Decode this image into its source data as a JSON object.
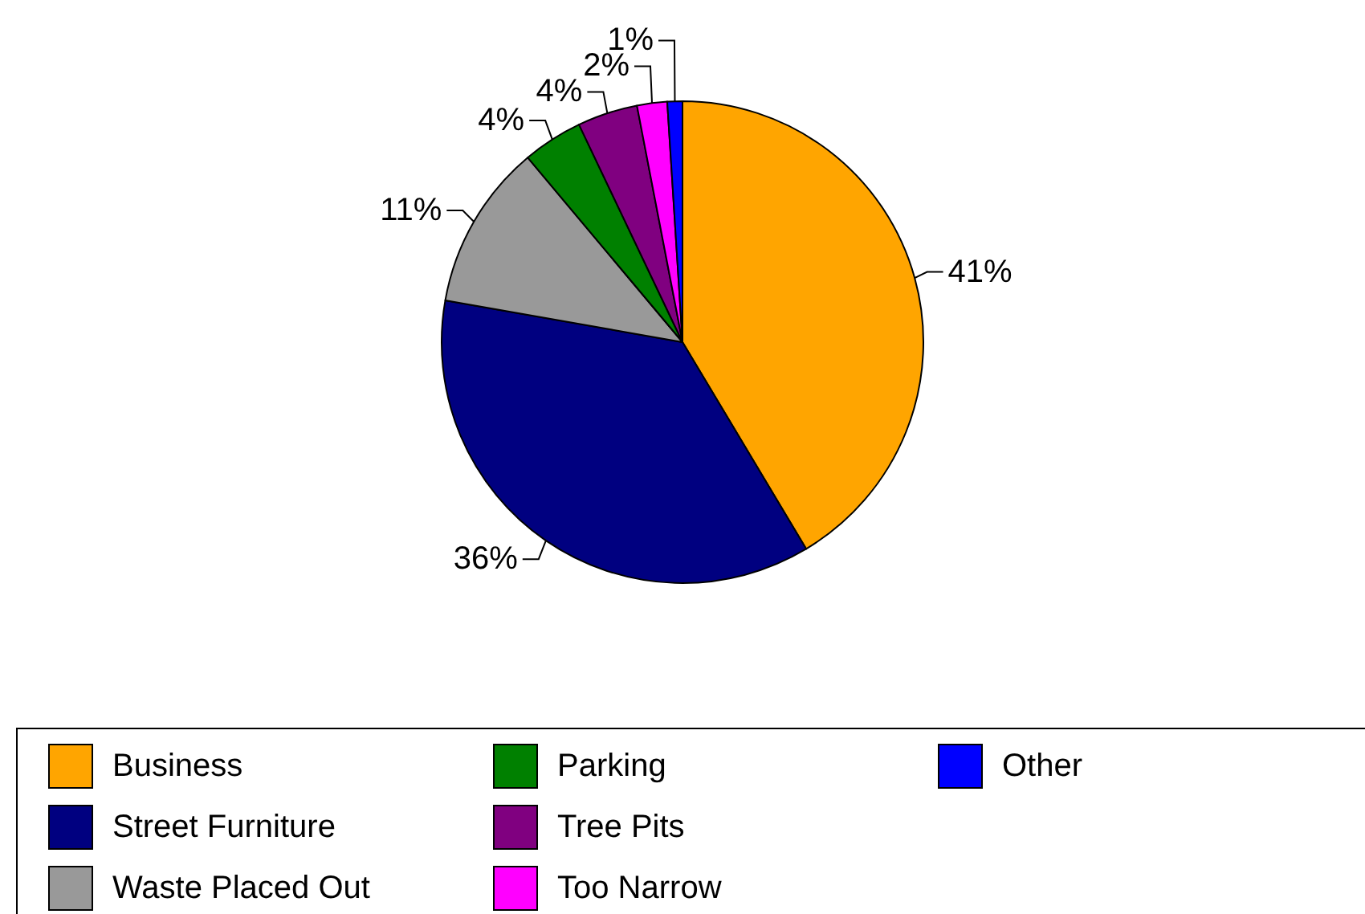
{
  "chart_data": {
    "type": "pie",
    "categories": [
      "Business",
      "Street Furniture",
      "Waste Placed Out",
      "Parking",
      "Tree Pits",
      "Too Narrow",
      "Other"
    ],
    "values": [
      41,
      36,
      11,
      4,
      4,
      2,
      1
    ],
    "value_labels": [
      "41%",
      "36%",
      "11%",
      "4%",
      "4%",
      "2%",
      "1%"
    ],
    "colors": [
      "#ffa500",
      "#000080",
      "#999999",
      "#008000",
      "#800080",
      "#ff00ff",
      "#0000ff"
    ],
    "legend": "bottom"
  }
}
